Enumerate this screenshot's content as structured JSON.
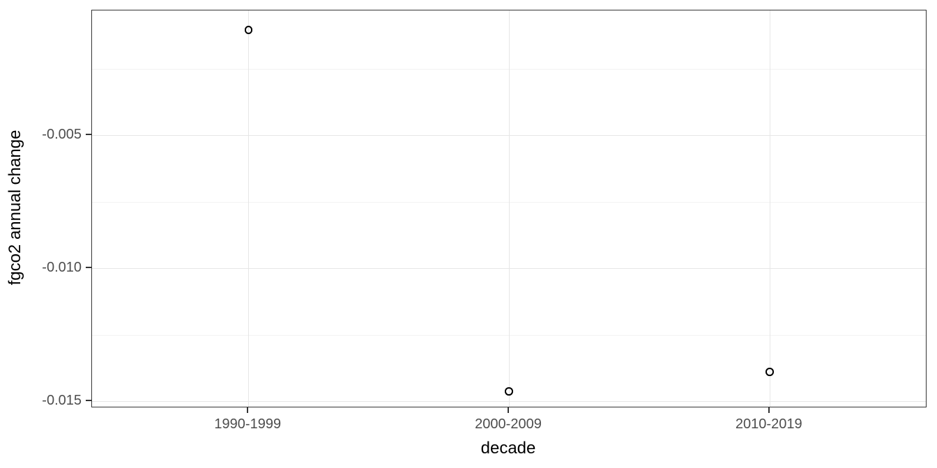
{
  "chart_data": {
    "type": "scatter",
    "title": "",
    "xlabel": "decade",
    "ylabel": "fgco2 annual change",
    "categories": [
      "1990-1999",
      "2000-2009",
      "2010-2019"
    ],
    "values": [
      -0.00104,
      -0.01463,
      -0.0139
    ],
    "ylim": [
      -0.01521,
      -0.0003
    ],
    "y_major_ticks": [
      {
        "value": -0.005,
        "label": "-0.005"
      },
      {
        "value": -0.01,
        "label": "-0.010"
      },
      {
        "value": -0.015,
        "label": "-0.015"
      }
    ],
    "y_minor_ticks": [
      -0.0025,
      -0.0075,
      -0.0125
    ],
    "grid": "horizontal major+minor, vertical major at categories",
    "legend_position": "none",
    "point_style": "open-circle",
    "theme": {
      "background": "#ffffff",
      "panel_border": "#333333",
      "grid_major": "#e6e6e6",
      "grid_minor": "#f2f2f2",
      "tick_color": "#333333",
      "tick_label_color": "#4d4d4d",
      "axis_title_color": "#000000",
      "point_color": "#000000"
    }
  }
}
